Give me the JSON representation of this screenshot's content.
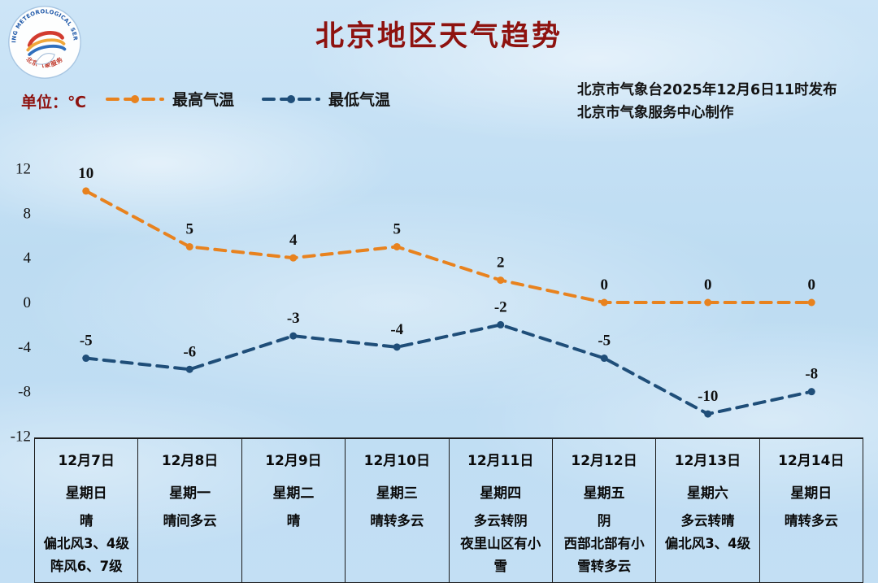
{
  "title": "北京地区天气趋势",
  "unit_label": "单位：℃",
  "legend": {
    "high": "最高气温",
    "low": "最低气温"
  },
  "source": {
    "line1": "北京市气象台2025年12月6日11时发布",
    "line2": "北京市气象服务中心制作"
  },
  "colors": {
    "title": "#8e120f",
    "high": "#e8821e",
    "low": "#1f4e79",
    "axis_text": "#101010",
    "table_line": "#1c1c1c"
  },
  "icons": {
    "logo": "beijing-meteorological-service-badge",
    "logo_ring_text": "BEIJING METEOROLOGICAL SERVICE",
    "logo_bottom_text": "北京气象服务"
  },
  "chart_data": {
    "type": "line",
    "title": "北京地区天气趋势",
    "ylabel": "℃",
    "ylim": [
      -12,
      12
    ],
    "yticks": [
      12,
      8,
      4,
      0,
      -4,
      -8,
      -12
    ],
    "grid": false,
    "legend_position": "top-left",
    "line_style": "dashed",
    "categories": [
      "12月7日",
      "12月8日",
      "12月9日",
      "12月10日",
      "12月11日",
      "12月12日",
      "12月13日",
      "12月14日"
    ],
    "series": [
      {
        "name": "最高气温",
        "color": "#e8821e",
        "values": [
          10,
          5,
          4,
          5,
          2,
          0,
          0,
          0
        ]
      },
      {
        "name": "最低气温",
        "color": "#1f4e79",
        "values": [
          -5,
          -6,
          -3,
          -4,
          -2,
          -5,
          -10,
          -8
        ]
      }
    ]
  },
  "table": {
    "columns": [
      {
        "date": "12月7日",
        "weekday": "星期日",
        "weather": [
          "晴",
          "偏北风3、4级",
          "阵风6、7级"
        ]
      },
      {
        "date": "12月8日",
        "weekday": "星期一",
        "weather": [
          "晴间多云"
        ]
      },
      {
        "date": "12月9日",
        "weekday": "星期二",
        "weather": [
          "晴"
        ]
      },
      {
        "date": "12月10日",
        "weekday": "星期三",
        "weather": [
          "晴转多云"
        ]
      },
      {
        "date": "12月11日",
        "weekday": "星期四",
        "weather": [
          "多云转阴",
          "夜里山区有小雪"
        ]
      },
      {
        "date": "12月12日",
        "weekday": "星期五",
        "weather": [
          "阴",
          "西部北部有小雪转多云"
        ]
      },
      {
        "date": "12月13日",
        "weekday": "星期六",
        "weather": [
          "多云转晴",
          "偏北风3、4级"
        ]
      },
      {
        "date": "12月14日",
        "weekday": "星期日",
        "weather": [
          "晴转多云"
        ]
      }
    ]
  }
}
